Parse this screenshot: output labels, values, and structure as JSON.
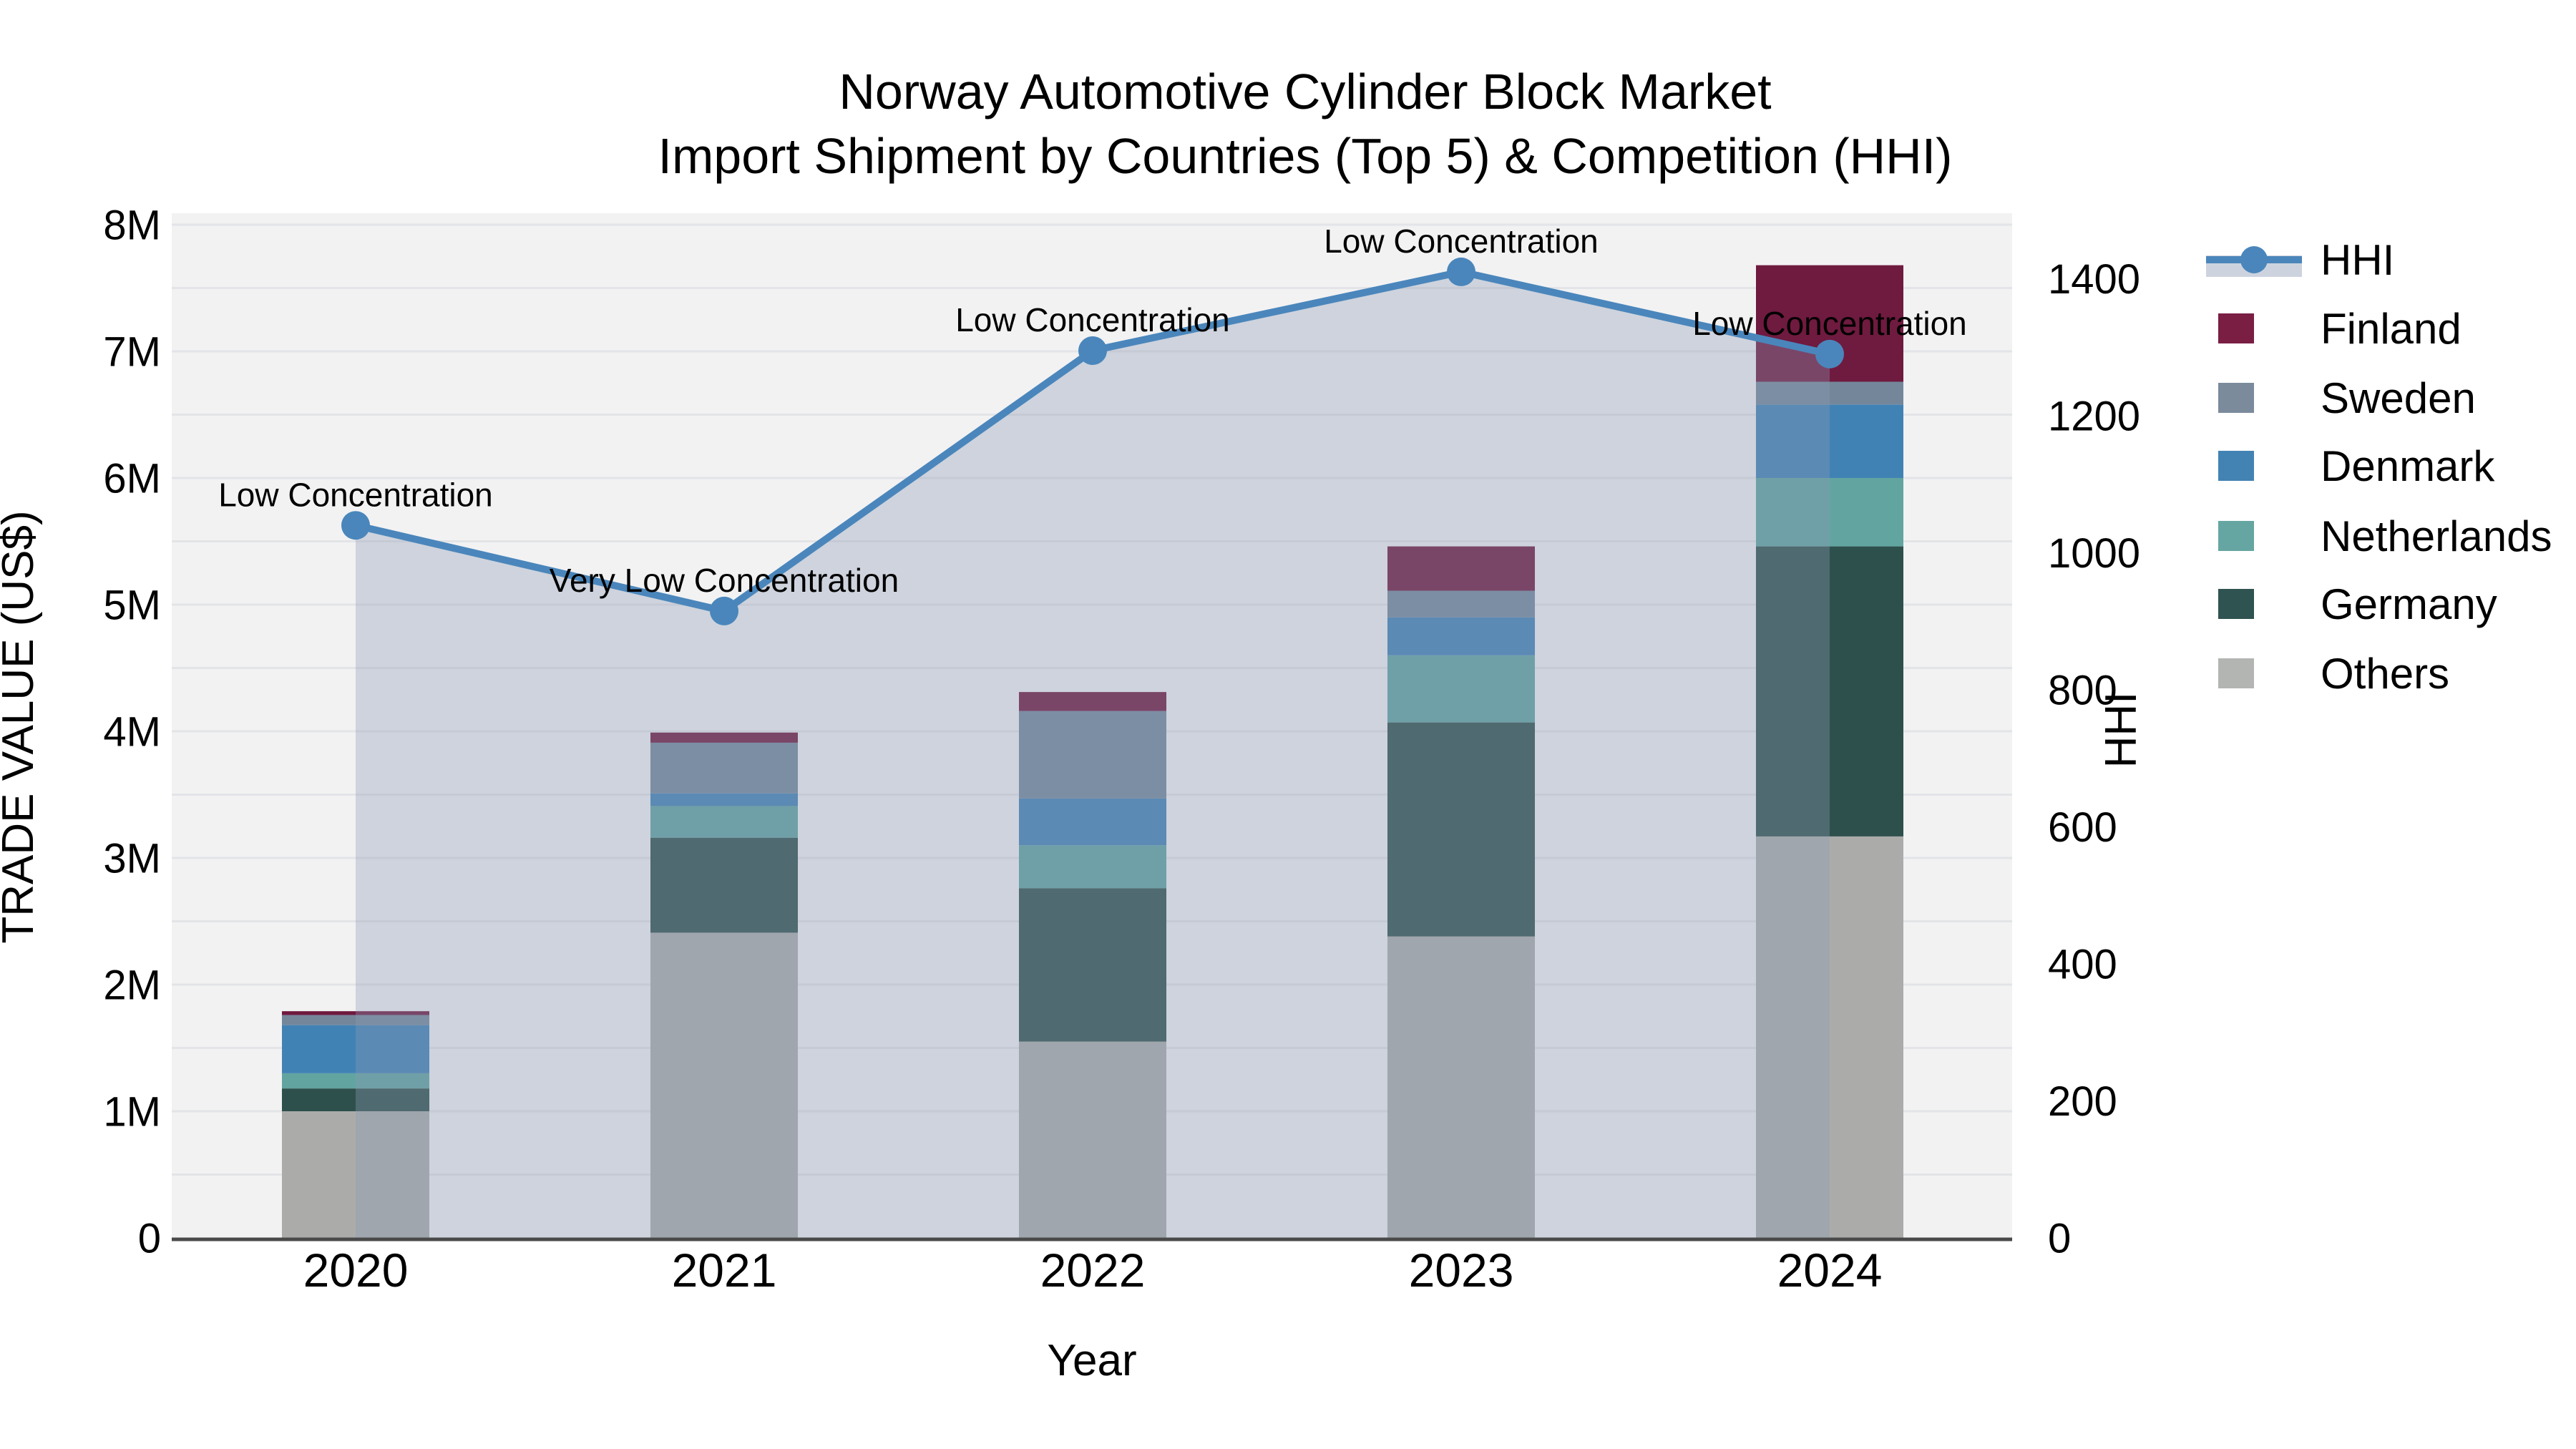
{
  "title": {
    "line1": "Norway Automotive Cylinder Block Market",
    "line2": "Import Shipment by Countries (Top 5) & Competition (HHI)"
  },
  "axes": {
    "x": {
      "title": "Year",
      "categories": [
        "2020",
        "2021",
        "2022",
        "2023",
        "2024"
      ]
    },
    "y_left": {
      "title": "TRADE VALUE (US$)",
      "tick_labels": [
        "0",
        "1M",
        "2M",
        "3M",
        "4M",
        "5M",
        "6M",
        "7M",
        "8M"
      ],
      "tick_values": [
        0,
        1,
        2,
        3,
        4,
        5,
        6,
        7,
        8
      ],
      "range": [
        0,
        8.1
      ]
    },
    "y_right": {
      "title": "HHI",
      "tick_labels": [
        "0",
        "200",
        "400",
        "600",
        "800",
        "1000",
        "1200",
        "1400"
      ],
      "tick_values": [
        0,
        200,
        400,
        600,
        800,
        1000,
        1200,
        1400
      ],
      "range": [
        0,
        1495
      ]
    }
  },
  "chart_data": {
    "type": "bar+line",
    "categories": [
      "2020",
      "2021",
      "2022",
      "2023",
      "2024"
    ],
    "bar_value_unit": "US$ millions",
    "stack_order_note": "series listed bottom to top",
    "series": [
      {
        "name": "Others",
        "color": "#abacaa",
        "values": [
          1.0,
          2.41,
          1.55,
          2.38,
          3.17
        ]
      },
      {
        "name": "Germany",
        "color": "#2e504c",
        "values": [
          0.18,
          0.75,
          1.21,
          1.69,
          2.29
        ]
      },
      {
        "name": "Netherlands",
        "color": "#62a4a0",
        "values": [
          0.12,
          0.25,
          0.34,
          0.53,
          0.54
        ]
      },
      {
        "name": "Denmark",
        "color": "#4182b4",
        "values": [
          0.38,
          0.1,
          0.37,
          0.3,
          0.58
        ]
      },
      {
        "name": "Sweden",
        "color": "#74879a",
        "values": [
          0.08,
          0.4,
          0.69,
          0.21,
          0.18
        ]
      },
      {
        "name": "Finland",
        "color": "#6f1a3f",
        "values": [
          0.03,
          0.08,
          0.15,
          0.35,
          0.92
        ]
      }
    ],
    "totals": [
      1.79,
      3.99,
      4.31,
      5.46,
      7.68
    ],
    "line": {
      "name": "HHI",
      "color": "#4a86bb",
      "area_color": "rgba(139,155,180,0.35)",
      "values": [
        1040,
        915,
        1295,
        1410,
        1290
      ]
    },
    "annotations": [
      "Low Concentration",
      "Very Low Concentration",
      "Low Concentration",
      "Low Concentration",
      "Low Concentration"
    ],
    "grid": "horizontal, every 0.5M",
    "legend_position": "outside-right"
  },
  "legend": {
    "items": [
      {
        "label": "HHI",
        "type": "line",
        "color": "#4a86bb",
        "band_color": "#cdd3de"
      },
      {
        "label": "Finland",
        "type": "swatch",
        "color": "#7a1e44"
      },
      {
        "label": "Sweden",
        "type": "swatch",
        "color": "#7b8b9c"
      },
      {
        "label": "Denmark",
        "type": "swatch",
        "color": "#4383b4"
      },
      {
        "label": "Netherlands",
        "type": "swatch",
        "color": "#66a6a2"
      },
      {
        "label": "Germany",
        "type": "swatch",
        "color": "#2f5350"
      },
      {
        "label": "Others",
        "type": "swatch",
        "color": "#b3b5b3"
      }
    ]
  },
  "colors": {
    "plot_bg": "#f2f2f3",
    "grid": "#e3e4e7",
    "axis_line": "#4a4a4a",
    "text": "#000000"
  }
}
